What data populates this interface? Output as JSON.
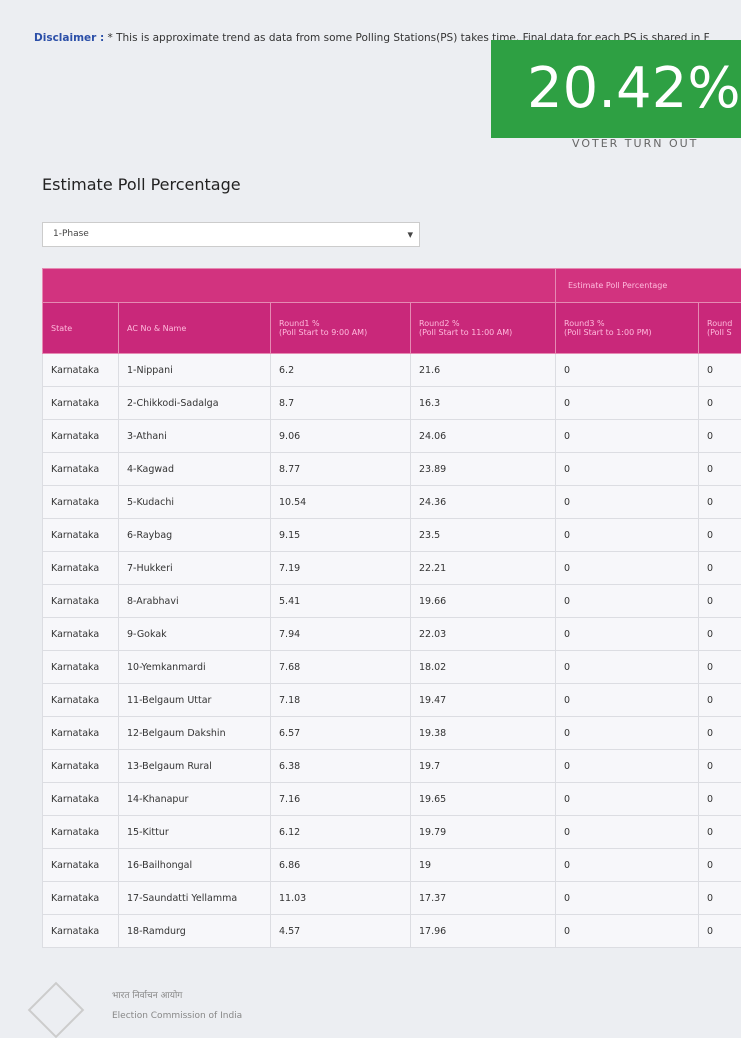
{
  "disclaimer": {
    "label": "Disclaimer :",
    "text": "* This is approximate trend as data from some Polling Stations(PS) takes time. Final data for each PS is shared in F"
  },
  "turnout": {
    "value": "20.42%",
    "label": "VOTER TURN OUT"
  },
  "section_title": "Estimate Poll Percentage",
  "phase_select": "1-Phase",
  "table": {
    "group_header": "Estimate Poll Percentage",
    "columns": [
      {
        "title": "State"
      },
      {
        "title": "AC No & Name"
      },
      {
        "title": "Round1 %",
        "subtitle": "(Poll Start to 9:00 AM)"
      },
      {
        "title": "Round2 %",
        "subtitle": "(Poll Start to 11:00 AM)"
      },
      {
        "title": "Round3 %",
        "subtitle": "(Poll Start to 1:00 PM)"
      },
      {
        "title": "Round",
        "subtitle": "(Poll S"
      }
    ],
    "rows": [
      [
        "Karnataka",
        "1-Nippani",
        6.2,
        21.6,
        0,
        0
      ],
      [
        "Karnataka",
        "2-Chikkodi-Sadalga",
        8.7,
        16.3,
        0,
        0
      ],
      [
        "Karnataka",
        "3-Athani",
        9.06,
        24.06,
        0,
        0
      ],
      [
        "Karnataka",
        "4-Kagwad",
        8.77,
        23.89,
        0,
        0
      ],
      [
        "Karnataka",
        "5-Kudachi",
        10.54,
        24.36,
        0,
        0
      ],
      [
        "Karnataka",
        "6-Raybag",
        9.15,
        23.5,
        0,
        0
      ],
      [
        "Karnataka",
        "7-Hukkeri",
        7.19,
        22.21,
        0,
        0
      ],
      [
        "Karnataka",
        "8-Arabhavi",
        5.41,
        19.66,
        0,
        0
      ],
      [
        "Karnataka",
        "9-Gokak",
        7.94,
        22.03,
        0,
        0
      ],
      [
        "Karnataka",
        "10-Yemkanmardi",
        7.68,
        18.02,
        0,
        0
      ],
      [
        "Karnataka",
        "11-Belgaum Uttar",
        7.18,
        19.47,
        0,
        0
      ],
      [
        "Karnataka",
        "12-Belgaum Dakshin",
        6.57,
        19.38,
        0,
        0
      ],
      [
        "Karnataka",
        "13-Belgaum Rural",
        6.38,
        19.7,
        0,
        0
      ],
      [
        "Karnataka",
        "14-Khanapur",
        7.16,
        19.65,
        0,
        0
      ],
      [
        "Karnataka",
        "15-Kittur",
        6.12,
        19.79,
        0,
        0
      ],
      [
        "Karnataka",
        "16-Bailhongal",
        6.86,
        19,
        0,
        0
      ],
      [
        "Karnataka",
        "17-Saundatti Yellamma",
        11.03,
        17.37,
        0,
        0
      ],
      [
        "Karnataka",
        "18-Ramdurg",
        4.57,
        17.96,
        0,
        0
      ]
    ]
  },
  "footer": {
    "hindi": "भारत निर्वाचन आयोग",
    "english": "Election Commission of India"
  }
}
